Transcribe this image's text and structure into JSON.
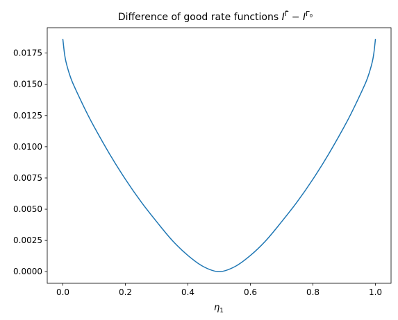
{
  "chart_data": {
    "type": "line",
    "title": {
      "main": "Difference of good rate functions ",
      "term1_base": "I",
      "term1_sup": "Γ̄",
      "operator": " − ",
      "term2_base": "I",
      "term2_sup": "Γ",
      "term2_sup_sub": "0"
    },
    "xlabel": {
      "base": "η",
      "sub": "1"
    },
    "ylabel": "",
    "xlim": [
      -0.05,
      1.05
    ],
    "ylim": [
      -0.00093,
      0.01953
    ],
    "xticks": [
      0.0,
      0.2,
      0.4,
      0.6,
      0.8,
      1.0
    ],
    "xtick_labels": [
      "0.0",
      "0.2",
      "0.4",
      "0.6",
      "0.8",
      "1.0"
    ],
    "yticks": [
      0.0,
      0.0025,
      0.005,
      0.0075,
      0.01,
      0.0125,
      0.015,
      0.0175
    ],
    "ytick_labels": [
      "0.0000",
      "0.0025",
      "0.0050",
      "0.0075",
      "0.0100",
      "0.0125",
      "0.0150",
      "0.0175"
    ],
    "grid": false,
    "series": [
      {
        "color": "#1f77b4",
        "x": [
          0.0,
          0.005,
          0.01,
          0.02,
          0.03,
          0.05,
          0.075,
          0.1,
          0.15,
          0.2,
          0.25,
          0.3,
          0.35,
          0.4,
          0.45,
          0.5,
          0.55,
          0.6,
          0.65,
          0.7,
          0.75,
          0.8,
          0.85,
          0.9,
          0.925,
          0.95,
          0.97,
          0.98,
          0.99,
          0.995,
          1.0
        ],
        "y": [
          0.0186,
          0.0175,
          0.0168,
          0.0159,
          0.0152,
          0.0141,
          0.0128,
          0.0116,
          0.0094,
          0.0074,
          0.0056,
          0.004,
          0.0025,
          0.0013,
          0.0004,
          0.0,
          0.0004,
          0.0013,
          0.0025,
          0.004,
          0.0056,
          0.0074,
          0.0094,
          0.0116,
          0.0128,
          0.0141,
          0.0152,
          0.0159,
          0.0168,
          0.0175,
          0.0186
        ]
      }
    ]
  }
}
